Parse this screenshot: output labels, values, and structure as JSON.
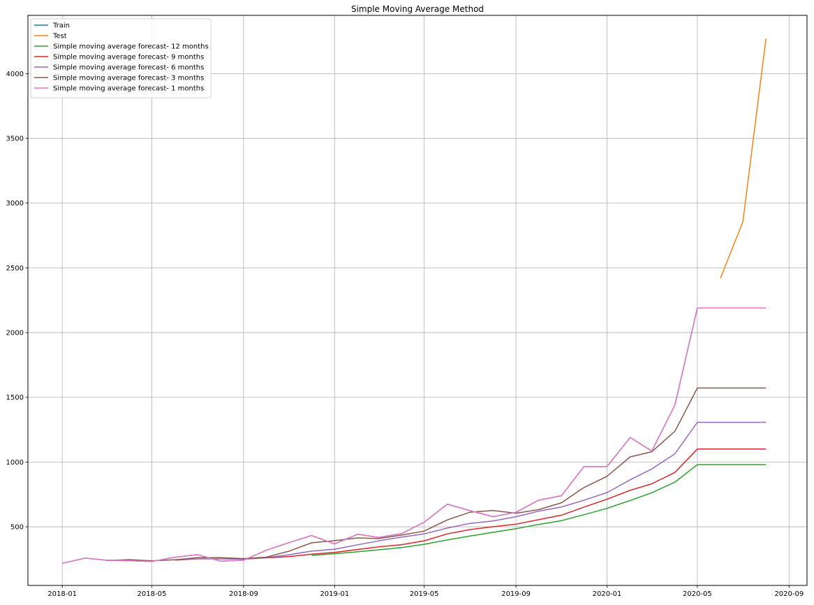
{
  "chart_data": {
    "type": "line",
    "title": "Simple Moving Average Method",
    "xlabel": "",
    "ylabel": "",
    "x_ticks": [
      "2018-01",
      "2018-05",
      "2018-09",
      "2019-01",
      "2019-05",
      "2019-09",
      "2020-01",
      "2020-05",
      "2020-09"
    ],
    "y_ticks": [
      500,
      1000,
      1500,
      2000,
      2500,
      3000,
      3500,
      4000
    ],
    "xlim": [
      "2017-11-16",
      "2020-09-25"
    ],
    "ylim": [
      47,
      4450
    ],
    "grid": true,
    "legend_position": "top-left",
    "series": [
      {
        "name": "Train",
        "color": "#1f77b4",
        "start": "2018-01",
        "values": [
          218,
          258,
          242,
          238,
          232,
          265,
          285,
          235,
          242,
          318,
          378,
          432,
          368,
          442,
          418,
          448,
          535,
          675,
          625,
          578,
          612,
          705,
          740,
          965,
          965,
          1190,
          1085,
          1440,
          2190
        ]
      },
      {
        "name": "Test",
        "color": "#ff7f0e",
        "start": "2020-06",
        "values": [
          2420,
          2855,
          4270
        ]
      },
      {
        "name": "Simple moving average forecast- 12 months",
        "color": "#2ca02c",
        "start": "2018-12",
        "values": [
          279,
          292,
          307,
          322,
          340,
          365,
          398,
          428,
          457,
          485,
          518,
          548,
          593,
          642,
          703,
          763,
          845,
          980,
          980,
          980,
          980
        ]
      },
      {
        "name": "Simple moving average forecast- 9 months",
        "color": "#d62728",
        "start": "2018-09",
        "values": [
          250,
          260,
          270,
          289,
          302,
          325,
          345,
          362,
          392,
          445,
          478,
          500,
          520,
          555,
          590,
          652,
          713,
          782,
          832,
          920,
          1100,
          1100,
          1100,
          1100
        ]
      },
      {
        "name": "Simple moving average forecast- 6 months",
        "color": "#9467bd",
        "start": "2018-06",
        "values": [
          242,
          252,
          252,
          250,
          262,
          284,
          312,
          327,
          361,
          391,
          421,
          445,
          490,
          526,
          545,
          578,
          620,
          653,
          705,
          764,
          863,
          947,
          1064,
          1307,
          1307,
          1307,
          1307
        ]
      },
      {
        "name": "Simple moving average forecast- 3 months",
        "color": "#8c564b",
        "start": "2018-03",
        "values": [
          239,
          246,
          237,
          245,
          261,
          262,
          254,
          265,
          312,
          376,
          393,
          414,
          409,
          436,
          467,
          553,
          612,
          626,
          605,
          632,
          686,
          803,
          890,
          1040,
          1080,
          1238,
          1572,
          1572,
          1572,
          1572
        ]
      },
      {
        "name": "Simple moving average forecast- 1 months",
        "color": "#e377c2",
        "start": "2018-01",
        "values": [
          218,
          258,
          242,
          238,
          232,
          265,
          285,
          235,
          242,
          318,
          378,
          432,
          368,
          442,
          418,
          448,
          535,
          675,
          625,
          578,
          612,
          705,
          740,
          965,
          965,
          1190,
          1085,
          1440,
          2190,
          2190,
          2190,
          2190
        ]
      }
    ]
  }
}
